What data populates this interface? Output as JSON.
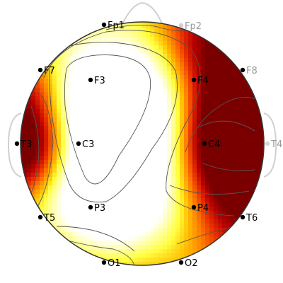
{
  "map": {
    "colors": {
      "scale": [
        "#7a0000",
        "#b80000",
        "#e83000",
        "#ff7a00",
        "#ffc000",
        "#ffff40",
        "#ffffa8",
        "#ffffff"
      ],
      "contour": "#555555",
      "outline": "#333333",
      "background": "#ffffff"
    }
  },
  "electrodes": [
    {
      "label": "Fp1"
    },
    {
      "label": "Fp2"
    },
    {
      "label": "F7"
    },
    {
      "label": "F3"
    },
    {
      "label": "F4"
    },
    {
      "label": "F8"
    },
    {
      "label": "T3"
    },
    {
      "label": "C3"
    },
    {
      "label": "C4"
    },
    {
      "label": "T4"
    },
    {
      "label": "T5"
    },
    {
      "label": "P3"
    },
    {
      "label": "P4"
    },
    {
      "label": "T6"
    },
    {
      "label": "O1"
    },
    {
      "label": "O2"
    }
  ]
}
